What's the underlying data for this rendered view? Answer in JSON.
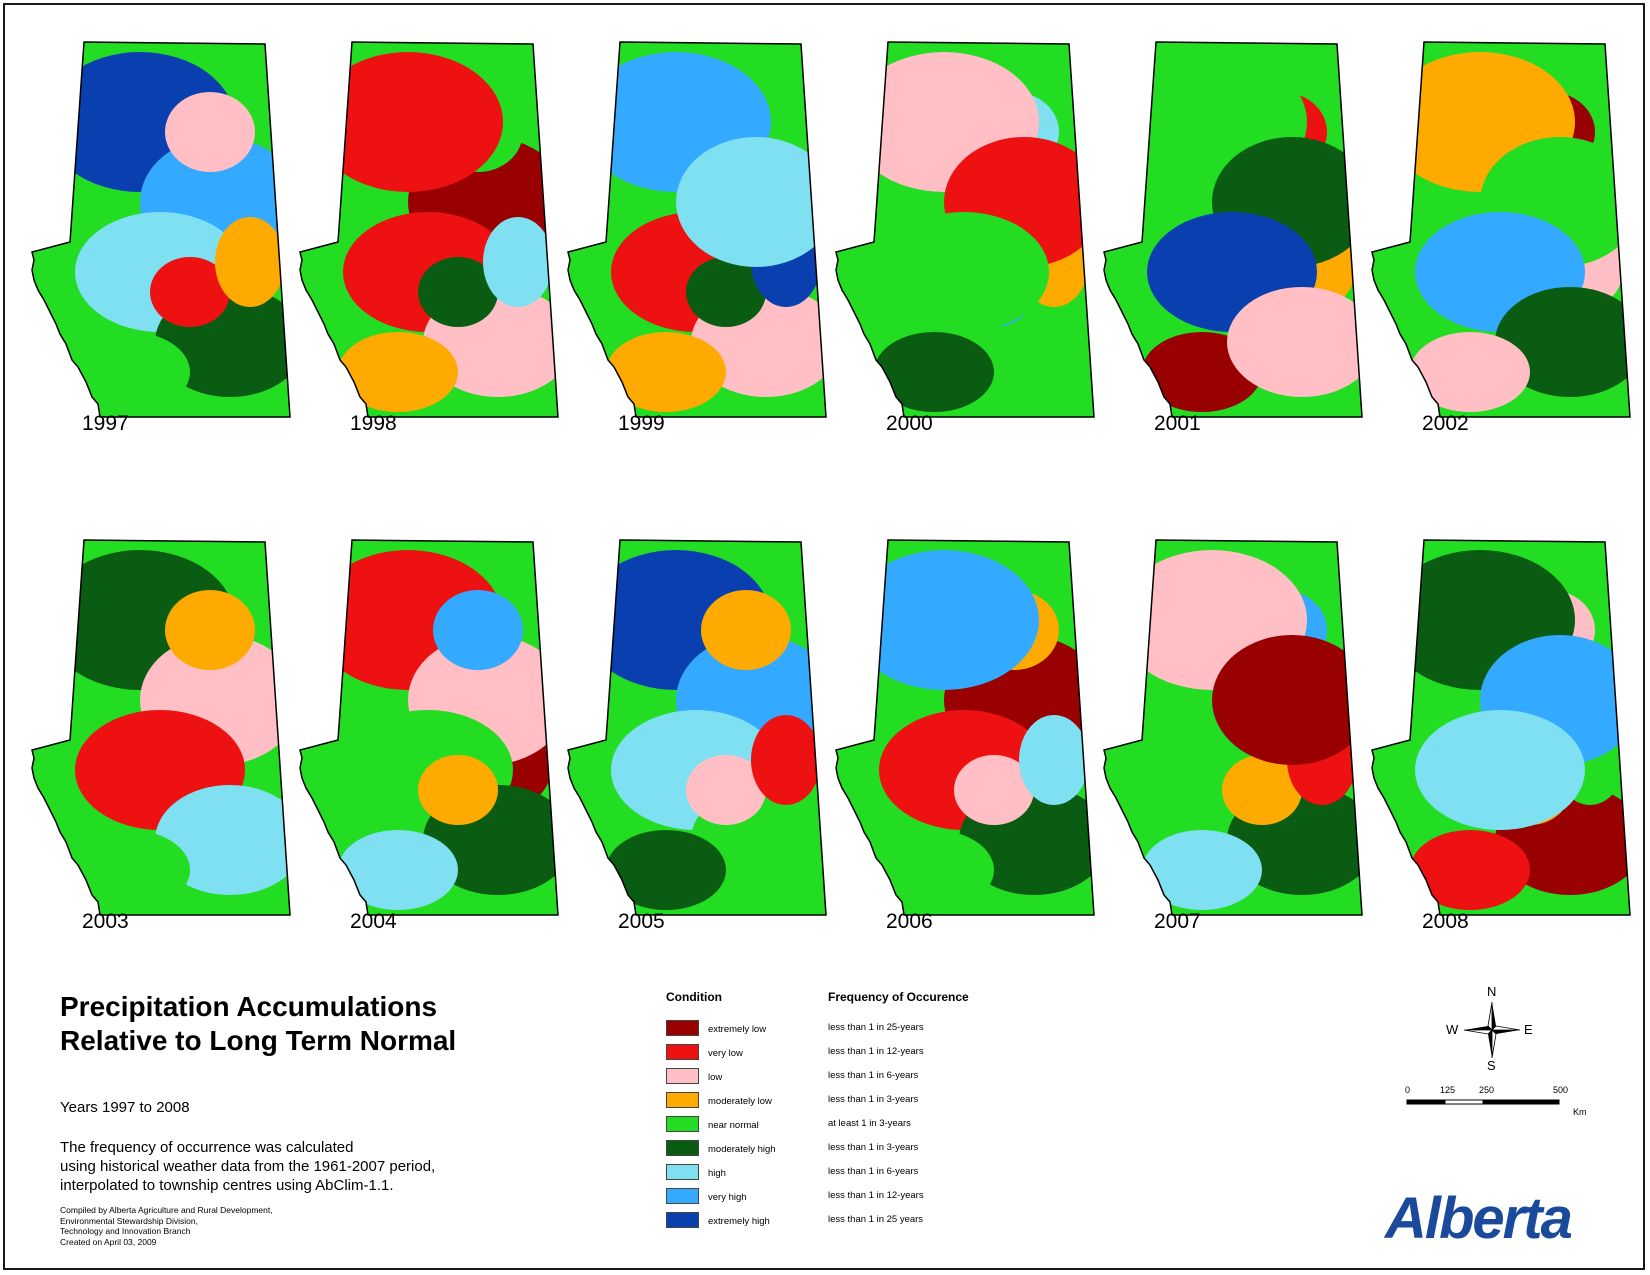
{
  "colors": {
    "extremely_low": "#990000",
    "very_low": "#ee1111",
    "low": "#ffbfc4",
    "moderately_low": "#ffaa00",
    "near_normal": "#22dd22",
    "moderately_high": "#0a5c12",
    "high": "#7ee0f0",
    "very_high": "#33aaff",
    "extremely_high": "#0a3fb0"
  },
  "maps": [
    {
      "year": "1997",
      "blobs": [
        "extremely_high",
        "very_high",
        "high",
        "moderately_high",
        "near_normal",
        "low",
        "very_low",
        "moderately_low"
      ]
    },
    {
      "year": "1998",
      "blobs": [
        "extremely_low",
        "very_low",
        "low",
        "moderately_low",
        "near_normal",
        "moderately_high",
        "high",
        "very_low"
      ]
    },
    {
      "year": "1999",
      "blobs": [
        "very_low",
        "low",
        "moderately_low",
        "near_normal",
        "moderately_high",
        "extremely_high",
        "very_high",
        "high"
      ]
    },
    {
      "year": "2000",
      "blobs": [
        "near_normal",
        "moderately_high",
        "high",
        "very_high",
        "moderately_low",
        "low",
        "very_low",
        "near_normal"
      ]
    },
    {
      "year": "2001",
      "blobs": [
        "extremely_low",
        "very_low",
        "low",
        "moderately_low",
        "near_normal",
        "moderately_high",
        "extremely_high",
        "low"
      ]
    },
    {
      "year": "2002",
      "blobs": [
        "extremely_low",
        "very_low",
        "low",
        "moderately_low",
        "near_normal",
        "very_high",
        "moderately_high",
        "low"
      ]
    },
    {
      "year": "2003",
      "blobs": [
        "moderately_low",
        "near_normal",
        "moderately_high",
        "low",
        "very_low",
        "high",
        "near_normal",
        "moderately_low"
      ]
    },
    {
      "year": "2004",
      "blobs": [
        "extremely_low",
        "very_low",
        "low",
        "near_normal",
        "moderately_high",
        "high",
        "very_high",
        "moderately_low"
      ]
    },
    {
      "year": "2005",
      "blobs": [
        "extremely_high",
        "very_high",
        "high",
        "near_normal",
        "moderately_high",
        "moderately_low",
        "low",
        "very_low"
      ]
    },
    {
      "year": "2006",
      "blobs": [
        "extremely_low",
        "very_low",
        "moderately_high",
        "near_normal",
        "moderately_low",
        "low",
        "high",
        "very_high"
      ]
    },
    {
      "year": "2007",
      "blobs": [
        "near_normal",
        "moderately_high",
        "high",
        "very_high",
        "moderately_low",
        "very_low",
        "low",
        "extremely_low"
      ]
    },
    {
      "year": "2008",
      "blobs": [
        "extremely_low",
        "very_low",
        "low",
        "moderately_low",
        "near_normal",
        "moderately_high",
        "very_high",
        "high"
      ]
    }
  ],
  "title_line1": "Precipitation Accumulations",
  "title_line2": "Relative to Long Term Normal",
  "years_range": "Years 1997 to 2008",
  "description": [
    "The frequency of occurrence was calculated",
    "using historical weather data from the 1961-2007 period,",
    "interpolated to township centres using AbClim-1.1."
  ],
  "credits": [
    "Compiled by Alberta Agriculture and Rural Development,",
    "Environmental Stewardship Division,",
    "Technology and Innovation Branch",
    "Created on April 03, 2009"
  ],
  "legend": {
    "condition_header": "Condition",
    "frequency_header": "Frequency of Occurence",
    "rows": [
      {
        "key": "extremely_low",
        "condition": "extremely low",
        "frequency": "less than 1 in 25-years"
      },
      {
        "key": "very_low",
        "condition": "very low",
        "frequency": "less than 1 in 12-years"
      },
      {
        "key": "low",
        "condition": "low",
        "frequency": "less than 1 in 6-years"
      },
      {
        "key": "moderately_low",
        "condition": "moderately low",
        "frequency": "less than 1 in 3-years"
      },
      {
        "key": "near_normal",
        "condition": "near normal",
        "frequency": "at least 1 in 3-years"
      },
      {
        "key": "moderately_high",
        "condition": "moderately high",
        "frequency": "less than 1 in 3-years"
      },
      {
        "key": "high",
        "condition": "high",
        "frequency": "less than 1 in 6-years"
      },
      {
        "key": "very_high",
        "condition": "very high",
        "frequency": "less than 1 in 12-years"
      },
      {
        "key": "extremely_high",
        "condition": "extremely high",
        "frequency": "less than 1 in 25 years"
      }
    ]
  },
  "compass": {
    "n": "N",
    "s": "S",
    "e": "E",
    "w": "W"
  },
  "scale": {
    "ticks": [
      "0",
      "125",
      "250",
      "500"
    ],
    "unit": "Km"
  },
  "logo": "Alberta"
}
